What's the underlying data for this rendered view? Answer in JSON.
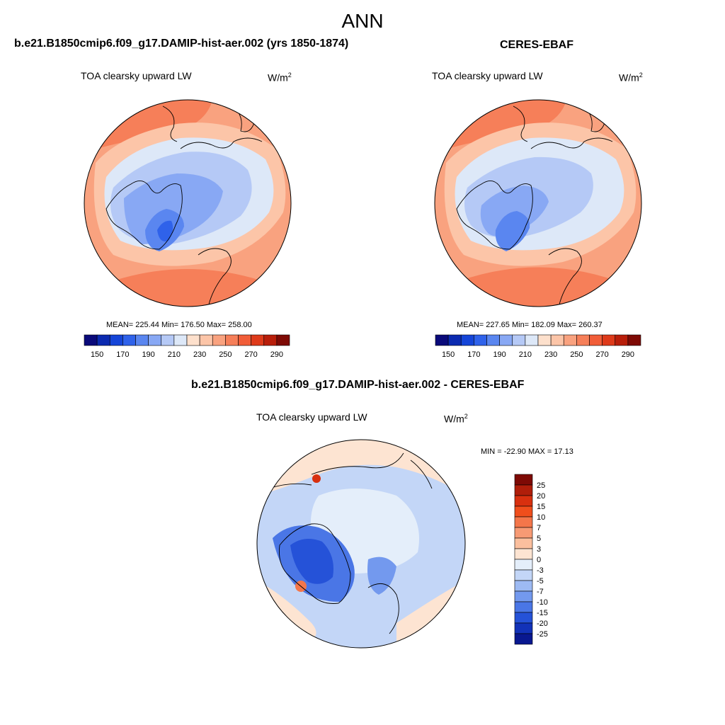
{
  "title": "ANN",
  "panels": [
    {
      "title": "b.e21.B1850cmip6.f09_g17.DAMIP-hist-aer.002 (yrs 1850-1874)",
      "variable": "TOA clearsky upward LW",
      "units_base": "W/m",
      "units_exp": "2",
      "stats": "MEAN= 225.44  Min= 176.50  Max= 258.00"
    },
    {
      "title": "CERES-EBAF",
      "variable": "TOA clearsky upward LW",
      "units_base": "W/m",
      "units_exp": "2",
      "stats": "MEAN= 227.65  Min= 182.09  Max= 260.37"
    },
    {
      "title": "b.e21.B1850cmip6.f09_g17.DAMIP-hist-aer.002 - CERES-EBAF",
      "variable": "TOA clearsky upward LW",
      "units_base": "W/m",
      "units_exp": "2",
      "stats": "MIN = -22.90 MAX =  17.13"
    }
  ],
  "chart_data": [
    {
      "type": "heatmap",
      "projection": "north polar stereographic",
      "title": "b.e21.B1850cmip6.f09_g17.DAMIP-hist-aer.002 (yrs 1850-1874)",
      "variable": "TOA clearsky upward LW",
      "units": "W/m2",
      "mean": 225.44,
      "min": 176.5,
      "max": 258.0,
      "colorbar": {
        "orientation": "horizontal",
        "tick_labels": [
          "150",
          "170",
          "190",
          "210",
          "230",
          "250",
          "270",
          "290"
        ],
        "colors": [
          "#0a0a7a",
          "#0b2ab0",
          "#1545d8",
          "#2f62ea",
          "#5a86f0",
          "#88a8f4",
          "#b5c9f6",
          "#dde8f8",
          "#fde0cc",
          "#fcc5a8",
          "#f9a27f",
          "#f67f59",
          "#f15d38",
          "#de3a1a",
          "#b81e0a",
          "#7e0a05"
        ]
      }
    },
    {
      "type": "heatmap",
      "projection": "north polar stereographic",
      "title": "CERES-EBAF",
      "variable": "TOA clearsky upward LW",
      "units": "W/m2",
      "mean": 227.65,
      "min": 182.09,
      "max": 260.37,
      "colorbar": {
        "orientation": "horizontal",
        "tick_labels": [
          "150",
          "170",
          "190",
          "210",
          "230",
          "250",
          "270",
          "290"
        ],
        "colors": [
          "#0a0a7a",
          "#0b2ab0",
          "#1545d8",
          "#2f62ea",
          "#5a86f0",
          "#88a8f4",
          "#b5c9f6",
          "#dde8f8",
          "#fde0cc",
          "#fcc5a8",
          "#f9a27f",
          "#f67f59",
          "#f15d38",
          "#de3a1a",
          "#b81e0a",
          "#7e0a05"
        ]
      }
    },
    {
      "type": "heatmap",
      "projection": "north polar stereographic",
      "title": "b.e21.B1850cmip6.f09_g17.DAMIP-hist-aer.002 - CERES-EBAF",
      "variable": "TOA clearsky upward LW",
      "units": "W/m2",
      "min": -22.9,
      "max": 17.13,
      "colorbar": {
        "orientation": "vertical",
        "tick_labels": [
          "25",
          "20",
          "15",
          "10",
          "7",
          "5",
          "3",
          "0",
          "-3",
          "-5",
          "-7",
          "-10",
          "-15",
          "-20",
          "-25"
        ],
        "colors": [
          "#7e0a05",
          "#b01e0a",
          "#d8300f",
          "#f04e1c",
          "#f4764a",
          "#f79a74",
          "#fbbf9e",
          "#fde4d2",
          "#e4eefa",
          "#c3d6f7",
          "#9dbaf3",
          "#7399ee",
          "#4a76e6",
          "#2552d8",
          "#1232b8",
          "#091890"
        ]
      }
    }
  ]
}
